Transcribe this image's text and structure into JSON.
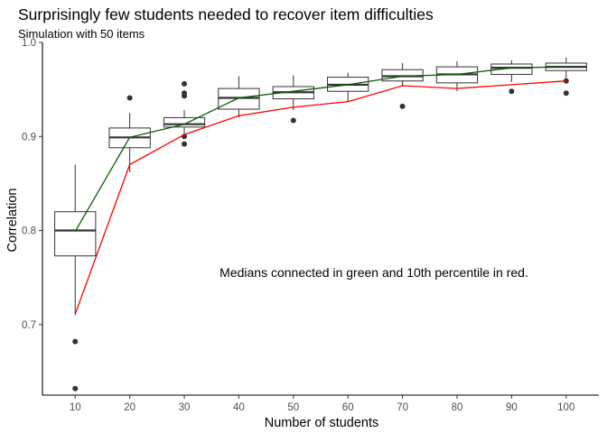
{
  "chart_data": {
    "type": "box",
    "title": "Surprisingly few students needed to recover item difficulties",
    "subtitle": "Simulation with 50 items",
    "xlabel": "Number of students",
    "ylabel": "Correlation",
    "ylim": [
      0.625,
      1.0
    ],
    "y_ticks": [
      0.7,
      0.8,
      0.9,
      1.0
    ],
    "y_tick_labels": [
      "0.7",
      "0.8",
      "0.9",
      "1.0"
    ],
    "categories": [
      "10",
      "20",
      "30",
      "40",
      "50",
      "60",
      "70",
      "80",
      "90",
      "100"
    ],
    "grid": false,
    "boxes": [
      {
        "x": "10",
        "q1": 0.773,
        "median": 0.8,
        "q3": 0.82,
        "whisker_low": 0.71,
        "whisker_high": 0.87,
        "outliers": [
          0.682,
          0.632
        ]
      },
      {
        "x": "20",
        "q1": 0.888,
        "median": 0.899,
        "q3": 0.909,
        "whisker_low": 0.862,
        "whisker_high": 0.925,
        "outliers": [
          0.941
        ]
      },
      {
        "x": "30",
        "q1": 0.91,
        "median": 0.913,
        "q3": 0.92,
        "whisker_low": 0.9,
        "whisker_high": 0.928,
        "outliers": [
          0.956,
          0.946,
          0.943,
          0.9,
          0.892
        ]
      },
      {
        "x": "40",
        "q1": 0.929,
        "median": 0.941,
        "q3": 0.951,
        "whisker_low": 0.92,
        "whisker_high": 0.964,
        "outliers": []
      },
      {
        "x": "50",
        "q1": 0.94,
        "median": 0.947,
        "q3": 0.953,
        "whisker_low": 0.928,
        "whisker_high": 0.965,
        "outliers": [
          0.917
        ]
      },
      {
        "x": "60",
        "q1": 0.948,
        "median": 0.955,
        "q3": 0.963,
        "whisker_low": 0.937,
        "whisker_high": 0.968,
        "outliers": []
      },
      {
        "x": "70",
        "q1": 0.959,
        "median": 0.964,
        "q3": 0.971,
        "whisker_low": 0.953,
        "whisker_high": 0.978,
        "outliers": [
          0.932
        ]
      },
      {
        "x": "80",
        "q1": 0.957,
        "median": 0.966,
        "q3": 0.974,
        "whisker_low": 0.948,
        "whisker_high": 0.98,
        "outliers": []
      },
      {
        "x": "90",
        "q1": 0.966,
        "median": 0.973,
        "q3": 0.977,
        "whisker_low": 0.958,
        "whisker_high": 0.981,
        "outliers": [
          0.948
        ]
      },
      {
        "x": "100",
        "q1": 0.97,
        "median": 0.974,
        "q3": 0.978,
        "whisker_low": 0.962,
        "whisker_high": 0.984,
        "outliers": [
          0.959,
          0.946
        ]
      }
    ],
    "series": [
      {
        "values": [
          0.799,
          0.899,
          0.913,
          0.941,
          0.948,
          0.955,
          0.964,
          0.966,
          0.973,
          0.974
        ],
        "color": "#0a5c00"
      },
      {
        "values": [
          0.711,
          0.87,
          0.902,
          0.922,
          0.931,
          0.937,
          0.954,
          0.951,
          0.955,
          0.959
        ],
        "color": "#ff0000"
      }
    ],
    "annotation": "Medians connected in green and 10th percentile in red."
  }
}
